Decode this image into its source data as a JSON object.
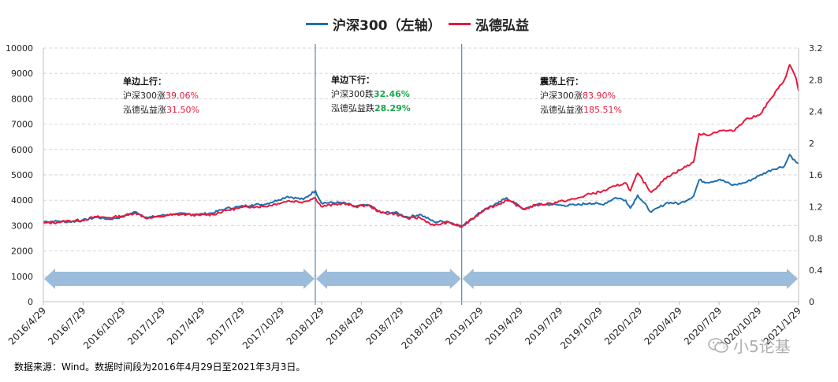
{
  "legend": {
    "items": [
      {
        "label": "沪深300（左轴）",
        "color": "#1f6fae"
      },
      {
        "label": "泓德弘益",
        "color": "#e8193c"
      }
    ]
  },
  "source_note": "数据来源：Wind。数据时间段为2016年4月29日至2021年3月3日。",
  "watermark": "小5论基",
  "colors": {
    "csi300": "#1f6fae",
    "fund": "#e8193c",
    "arrow": "#9bbcda",
    "down": "#1aa64b",
    "up": "#e8193c"
  },
  "annotations": [
    {
      "title": "单边上行：",
      "line1_prefix": "沪深300涨",
      "line1_value": "39.06%",
      "line1_color": "up",
      "line2_prefix": "泓德弘益涨",
      "line2_value": "31.50%",
      "line2_color": "up"
    },
    {
      "title": "单边下行：",
      "line1_prefix": "沪深300跌",
      "line1_value": "32.46%",
      "line1_color": "down",
      "line2_prefix": "泓德弘益跌",
      "line2_value": "28.29%",
      "line2_color": "down"
    },
    {
      "title": "震荡上行：",
      "line1_prefix": "沪深300涨",
      "line1_value": "83.90%",
      "line1_color": "up",
      "line2_prefix": "泓德弘益涨",
      "line2_value": "185.51%",
      "line2_color": "up"
    }
  ],
  "chart_data": {
    "type": "line",
    "x_ticks": [
      "2016/4/29",
      "2016/7/29",
      "2016/10/29",
      "2017/1/29",
      "2017/4/29",
      "2017/7/29",
      "2017/10/29",
      "2018/1/29",
      "2018/4/29",
      "2018/7/29",
      "2018/10/29",
      "2019/1/29",
      "2019/4/29",
      "2019/7/29",
      "2019/10/29",
      "2020/1/29",
      "2020/4/29",
      "2020/7/29",
      "2020/10/29",
      "2021/1/29"
    ],
    "x_range": [
      "2016-04-29",
      "2021-03-03"
    ],
    "y_left": {
      "min": 0,
      "max": 10000,
      "ticks": [
        0,
        1000,
        2000,
        3000,
        4000,
        5000,
        6000,
        7000,
        8000,
        9000,
        10000
      ]
    },
    "y_right": {
      "min": 0,
      "max": 3.2,
      "ticks": [
        "0",
        "0.4",
        "0.8",
        "1.2",
        "1.6",
        "2",
        "2.4",
        "2.8",
        "3.2"
      ]
    },
    "grid": "horizontal-dashed",
    "legend_position": "top-center",
    "dividers": [
      "2018-01-26",
      "2019-01-04"
    ],
    "arrows": [
      [
        "2016-04-29",
        "2018-01-26"
      ],
      [
        "2018-01-26",
        "2019-01-04"
      ],
      [
        "2019-01-04",
        "2021-03-03"
      ]
    ],
    "arrow_value_left_axis": 900,
    "series": [
      {
        "name": "沪深300（左轴）",
        "axis": "left",
        "points": [
          [
            "2016-04-29",
            3160
          ],
          [
            "2016-05-31",
            3170
          ],
          [
            "2016-06-30",
            3150
          ],
          [
            "2016-07-29",
            3200
          ],
          [
            "2016-08-31",
            3330
          ],
          [
            "2016-09-30",
            3250
          ],
          [
            "2016-10-31",
            3340
          ],
          [
            "2016-11-30",
            3540
          ],
          [
            "2016-12-30",
            3310
          ],
          [
            "2017-01-26",
            3390
          ],
          [
            "2017-02-28",
            3450
          ],
          [
            "2017-03-31",
            3460
          ],
          [
            "2017-04-28",
            3440
          ],
          [
            "2017-05-31",
            3500
          ],
          [
            "2017-06-30",
            3670
          ],
          [
            "2017-07-31",
            3740
          ],
          [
            "2017-08-31",
            3820
          ],
          [
            "2017-09-29",
            3840
          ],
          [
            "2017-10-31",
            4010
          ],
          [
            "2017-11-22",
            4150
          ],
          [
            "2017-12-29",
            4030
          ],
          [
            "2018-01-26",
            4380
          ],
          [
            "2018-02-09",
            3900
          ],
          [
            "2018-03-30",
            3900
          ],
          [
            "2018-04-30",
            3760
          ],
          [
            "2018-05-31",
            3800
          ],
          [
            "2018-06-29",
            3510
          ],
          [
            "2018-07-31",
            3520
          ],
          [
            "2018-08-31",
            3330
          ],
          [
            "2018-09-28",
            3440
          ],
          [
            "2018-10-31",
            3150
          ],
          [
            "2018-11-30",
            3170
          ],
          [
            "2018-12-28",
            3010
          ],
          [
            "2019-01-04",
            2965
          ],
          [
            "2019-02-28",
            3670
          ],
          [
            "2019-03-29",
            3870
          ],
          [
            "2019-04-19",
            4100
          ],
          [
            "2019-05-31",
            3630
          ],
          [
            "2019-06-28",
            3830
          ],
          [
            "2019-07-31",
            3830
          ],
          [
            "2019-08-30",
            3800
          ],
          [
            "2019-09-30",
            3810
          ],
          [
            "2019-10-31",
            3890
          ],
          [
            "2019-11-29",
            3830
          ],
          [
            "2019-12-31",
            4100
          ],
          [
            "2020-01-23",
            4000
          ],
          [
            "2020-02-03",
            3690
          ],
          [
            "2020-02-20",
            4200
          ],
          [
            "2020-03-23",
            3530
          ],
          [
            "2020-04-30",
            3910
          ],
          [
            "2020-05-29",
            3870
          ],
          [
            "2020-06-30",
            4160
          ],
          [
            "2020-07-13",
            4800
          ],
          [
            "2020-07-31",
            4700
          ],
          [
            "2020-08-31",
            4820
          ],
          [
            "2020-09-30",
            4590
          ],
          [
            "2020-10-30",
            4700
          ],
          [
            "2020-11-30",
            4960
          ],
          [
            "2020-12-31",
            5210
          ],
          [
            "2021-01-29",
            5350
          ],
          [
            "2021-02-10",
            5800
          ],
          [
            "2021-02-25",
            5500
          ],
          [
            "2021-03-03",
            5450
          ]
        ]
      },
      {
        "name": "泓德弘益",
        "axis": "right",
        "points": [
          [
            "2016-04-29",
            0.99
          ],
          [
            "2016-05-31",
            1.0
          ],
          [
            "2016-06-30",
            1.02
          ],
          [
            "2016-07-29",
            1.03
          ],
          [
            "2016-08-31",
            1.07
          ],
          [
            "2016-09-30",
            1.06
          ],
          [
            "2016-10-31",
            1.08
          ],
          [
            "2016-11-30",
            1.12
          ],
          [
            "2016-12-30",
            1.05
          ],
          [
            "2017-01-26",
            1.07
          ],
          [
            "2017-02-28",
            1.1
          ],
          [
            "2017-03-31",
            1.1
          ],
          [
            "2017-04-28",
            1.09
          ],
          [
            "2017-05-31",
            1.1
          ],
          [
            "2017-06-30",
            1.15
          ],
          [
            "2017-07-31",
            1.18
          ],
          [
            "2017-08-31",
            1.2
          ],
          [
            "2017-09-29",
            1.2
          ],
          [
            "2017-10-31",
            1.24
          ],
          [
            "2017-11-22",
            1.27
          ],
          [
            "2017-12-29",
            1.26
          ],
          [
            "2018-01-26",
            1.31
          ],
          [
            "2018-02-09",
            1.2
          ],
          [
            "2018-03-30",
            1.24
          ],
          [
            "2018-04-30",
            1.2
          ],
          [
            "2018-05-31",
            1.22
          ],
          [
            "2018-06-29",
            1.12
          ],
          [
            "2018-07-31",
            1.11
          ],
          [
            "2018-08-31",
            1.05
          ],
          [
            "2018-09-28",
            1.06
          ],
          [
            "2018-10-31",
            0.96
          ],
          [
            "2018-11-30",
            1.0
          ],
          [
            "2018-12-28",
            0.96
          ],
          [
            "2019-01-04",
            0.94
          ],
          [
            "2019-02-28",
            1.17
          ],
          [
            "2019-03-29",
            1.22
          ],
          [
            "2019-04-19",
            1.28
          ],
          [
            "2019-05-31",
            1.17
          ],
          [
            "2019-06-28",
            1.22
          ],
          [
            "2019-07-31",
            1.24
          ],
          [
            "2019-08-30",
            1.27
          ],
          [
            "2019-09-30",
            1.3
          ],
          [
            "2019-10-31",
            1.36
          ],
          [
            "2019-11-29",
            1.39
          ],
          [
            "2019-12-31",
            1.46
          ],
          [
            "2020-01-23",
            1.5
          ],
          [
            "2020-02-03",
            1.4
          ],
          [
            "2020-02-20",
            1.62
          ],
          [
            "2020-03-23",
            1.38
          ],
          [
            "2020-04-30",
            1.58
          ],
          [
            "2020-05-29",
            1.66
          ],
          [
            "2020-06-30",
            1.76
          ],
          [
            "2020-07-13",
            2.12
          ],
          [
            "2020-07-31",
            2.1
          ],
          [
            "2020-08-31",
            2.16
          ],
          [
            "2020-09-30",
            2.15
          ],
          [
            "2020-10-30",
            2.3
          ],
          [
            "2020-11-30",
            2.35
          ],
          [
            "2020-12-31",
            2.58
          ],
          [
            "2021-01-29",
            2.8
          ],
          [
            "2021-02-10",
            2.99
          ],
          [
            "2021-02-25",
            2.82
          ],
          [
            "2021-03-03",
            2.66
          ]
        ]
      }
    ]
  }
}
